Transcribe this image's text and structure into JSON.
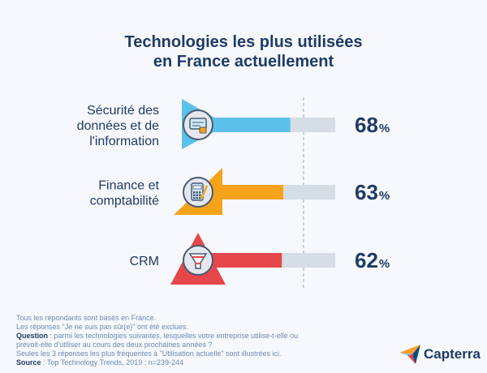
{
  "title": [
    "Technologies les plus utilisées",
    "en France actuellement"
  ],
  "chart_data": {
    "type": "bar",
    "orientation": "horizontal",
    "categories": [
      [
        "Sécurité des",
        "données et de",
        "l'information"
      ],
      [
        "Finance et",
        "comptabilité"
      ],
      [
        "CRM"
      ]
    ],
    "values": [
      68,
      63,
      62
    ],
    "value_labels": [
      "68",
      "63",
      "62"
    ],
    "unit": "%",
    "xlim": [
      0,
      100
    ],
    "icons": [
      "security-icon",
      "calculator-icon",
      "funnel-icon"
    ]
  },
  "colors": {
    "bars": [
      "#5bc1ea",
      "#f7a21b",
      "#e5474b"
    ],
    "track": "#d5dde6",
    "text": "#1f3b66",
    "footnote": "#6a8bb5",
    "icon_ring": "#4a5b72",
    "icon_face": "#e4e8ee"
  },
  "footnotes": {
    "line1": "Tous les répondants sont basés en France.",
    "line2": "Les réponses \"Je ne suis pas sûr(e)\" ont été exclues.",
    "question_label": "Question",
    "question_text1": " : parmi les technologies suivantes, lesquelles votre entreprise utilise-t-elle ou",
    "question_text2": "prévoit-elle d'utiliser au cours des deux prochaines années ?",
    "line5": "Seules les 3 réponses les plus fréquentes à \"Utilisation actuelle\" sont illustrées ici.",
    "source_label": "Source",
    "source_text": " : Top Technology Trends, 2019 ; n=239-244"
  },
  "brand": {
    "name": "Capterra",
    "icon": "capterra-logo-icon"
  }
}
